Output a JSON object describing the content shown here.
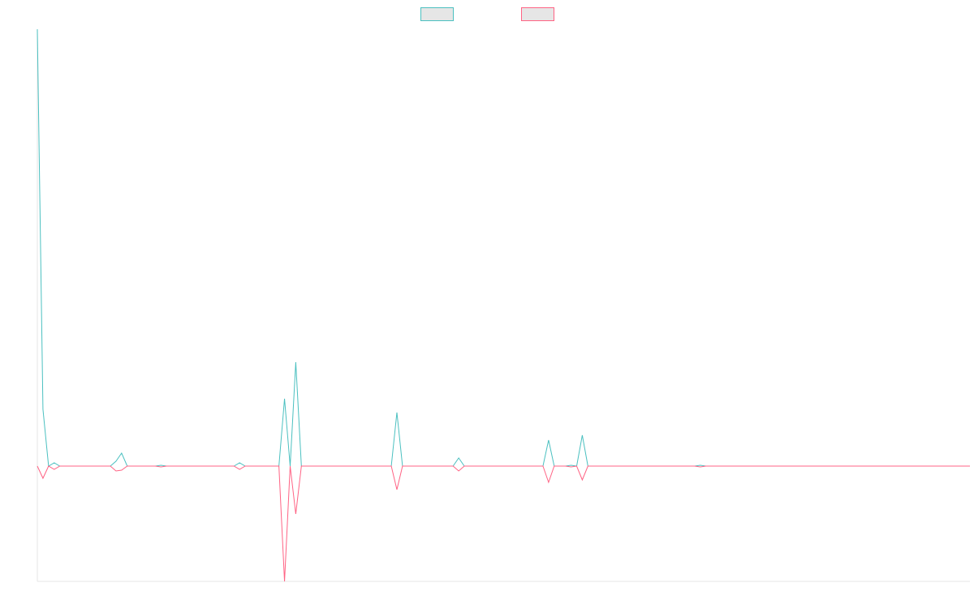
{
  "chart_data": {
    "type": "line",
    "series": [
      {
        "color": "#4bc0c0",
        "values": [
          538,
          70,
          0,
          4,
          0,
          0,
          0,
          0,
          0,
          0,
          0,
          0,
          0,
          0,
          6,
          16,
          0,
          0,
          0,
          0,
          0,
          0,
          1,
          0,
          0,
          0,
          0,
          0,
          0,
          0,
          0,
          0,
          0,
          0,
          0,
          0,
          4,
          0,
          0,
          0,
          0,
          0,
          0,
          0,
          83,
          0,
          128,
          0,
          0,
          0,
          0,
          0,
          0,
          0,
          0,
          0,
          0,
          0,
          0,
          0,
          0,
          0,
          0,
          0,
          66,
          0,
          0,
          0,
          0,
          0,
          0,
          0,
          0,
          0,
          0,
          10,
          0,
          0,
          0,
          0,
          0,
          0,
          0,
          0,
          0,
          0,
          0,
          0,
          0,
          0,
          0,
          32,
          0,
          0,
          0,
          1,
          0,
          38,
          0,
          0,
          0,
          0,
          0,
          0,
          0,
          0,
          0,
          0,
          0,
          0,
          0,
          0,
          0,
          0,
          0,
          0,
          0,
          0,
          1,
          0,
          0,
          0,
          0,
          0,
          0,
          0,
          0,
          0,
          0,
          0,
          0,
          0,
          0,
          0,
          0,
          0,
          0,
          0,
          0,
          0,
          0,
          0,
          0,
          0,
          0,
          0,
          0,
          0,
          0,
          0,
          0,
          0,
          0,
          0,
          0,
          0,
          0,
          0,
          0,
          0,
          0,
          0,
          0,
          0,
          0,
          0,
          0
        ]
      },
      {
        "color": "#ff6384",
        "values": [
          0,
          -15,
          0,
          -4,
          0,
          0,
          0,
          0,
          0,
          0,
          0,
          0,
          0,
          0,
          -6,
          -5,
          0,
          0,
          0,
          0,
          0,
          0,
          -1,
          0,
          0,
          0,
          0,
          0,
          0,
          0,
          0,
          0,
          0,
          0,
          0,
          0,
          -4,
          0,
          0,
          0,
          0,
          0,
          0,
          0,
          -142,
          0,
          -59,
          0,
          0,
          0,
          0,
          0,
          0,
          0,
          0,
          0,
          0,
          0,
          0,
          0,
          0,
          0,
          0,
          0,
          -29,
          0,
          0,
          0,
          0,
          0,
          0,
          0,
          0,
          0,
          0,
          -6,
          0,
          0,
          0,
          0,
          0,
          0,
          0,
          0,
          0,
          0,
          0,
          0,
          0,
          0,
          0,
          -20,
          0,
          0,
          0,
          -1,
          0,
          -17,
          0,
          0,
          0,
          0,
          0,
          0,
          0,
          0,
          0,
          0,
          0,
          0,
          0,
          0,
          0,
          0,
          0,
          0,
          0,
          0,
          -1,
          0,
          0,
          0,
          0,
          0,
          0,
          0,
          0,
          0,
          0,
          0,
          0,
          0,
          0,
          0,
          0,
          0,
          0,
          0,
          0,
          0,
          0,
          0,
          0,
          0,
          0,
          0,
          0,
          0,
          0,
          0,
          0,
          0,
          0,
          0,
          0,
          0,
          0,
          0,
          0,
          0,
          0,
          0,
          0,
          0,
          0,
          0,
          0
        ]
      }
    ],
    "ylim": [
      -142,
      538
    ],
    "legend": "top"
  }
}
